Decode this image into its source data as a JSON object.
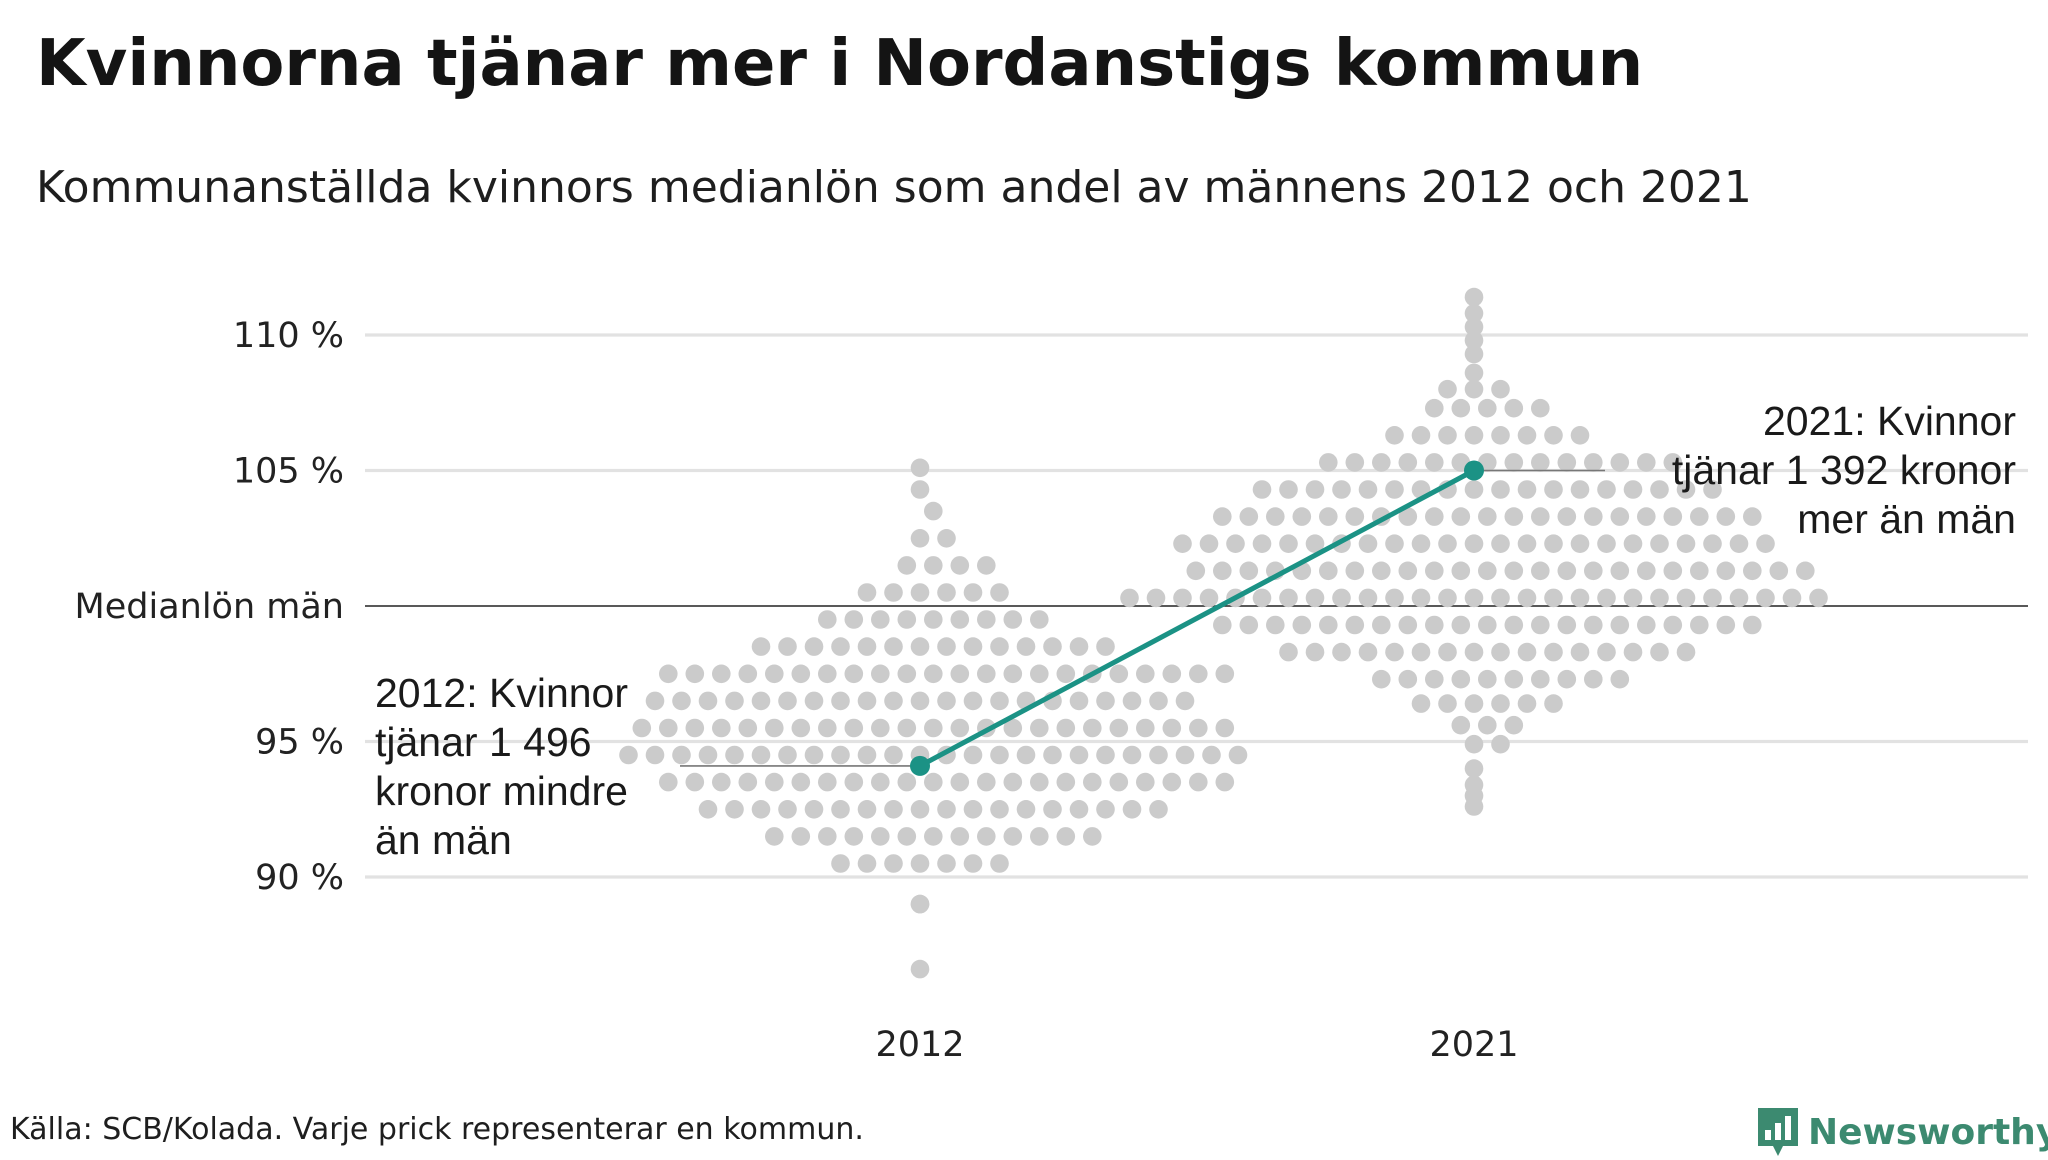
{
  "header": {
    "title": "Kvinnorna tjänar mer i Nordanstigs kommun",
    "subtitle": "Kommunanställda kvinnors medianlön som andel av männens 2012 och 2021"
  },
  "footer": {
    "source": "Källa: SCB/Kolada. Varje prick representerar en kommun.",
    "brand": "Newsworthy",
    "brand_icon": "bar-chart-pin-icon"
  },
  "colors": {
    "dots": "#cbcbcb",
    "highlight": "#1b9285",
    "gridline": "#e2e2e2",
    "reference_line": "#222222",
    "brand": "#3c8a70"
  },
  "chart_data": {
    "type": "scatter",
    "subtype": "beeswarm-slope",
    "categories": [
      "2012",
      "2021"
    ],
    "y_ticks": [
      {
        "value": 90,
        "label": "90 %"
      },
      {
        "value": 95,
        "label": "95 %"
      },
      {
        "value": 100,
        "label": "Medianlön män"
      },
      {
        "value": 105,
        "label": "105 %"
      },
      {
        "value": 110,
        "label": "110 %"
      }
    ],
    "ylim": [
      85,
      112
    ],
    "reference_line": {
      "value": 100,
      "label": "Medianlön män"
    },
    "grid": true,
    "highlight": {
      "values": [
        {
          "category": "2012",
          "value": 94.1
        },
        {
          "category": "2021",
          "value": 105.0
        }
      ],
      "annotations": [
        {
          "category": "2012",
          "lines": [
            "2012: Kvinnor",
            "tjänar 1 496",
            "kronor mindre",
            "än män"
          ]
        },
        {
          "category": "2021",
          "lines": [
            "2021: Kvinnor",
            "tjänar 1 392 kronor",
            "mer än män"
          ]
        }
      ]
    },
    "distribution": [
      {
        "category": "2012",
        "outliers": [
          86.6,
          89.0,
          89.0,
          105.1
        ],
        "bins": [
          {
            "value": 90.5,
            "count": 7
          },
          {
            "value": 91.5,
            "count": 13
          },
          {
            "value": 92.5,
            "count": 18
          },
          {
            "value": 93.5,
            "count": 22
          },
          {
            "value": 94.5,
            "count": 24
          },
          {
            "value": 95.5,
            "count": 23
          },
          {
            "value": 96.5,
            "count": 21
          },
          {
            "value": 97.5,
            "count": 22
          },
          {
            "value": 98.5,
            "count": 14
          },
          {
            "value": 99.5,
            "count": 9
          },
          {
            "value": 100.5,
            "count": 6
          },
          {
            "value": 101.5,
            "count": 4
          },
          {
            "value": 102.5,
            "count": 2
          },
          {
            "value": 103.5,
            "count": 1
          },
          {
            "value": 104.3,
            "count": 1
          }
        ]
      },
      {
        "category": "2021",
        "outliers": [
          92.6,
          93.0,
          93.4,
          94.0,
          108.6,
          109.3,
          109.8,
          110.3,
          110.8,
          111.4
        ],
        "bins": [
          {
            "value": 94.9,
            "count": 2
          },
          {
            "value": 95.6,
            "count": 3
          },
          {
            "value": 96.4,
            "count": 6
          },
          {
            "value": 97.3,
            "count": 10
          },
          {
            "value": 98.3,
            "count": 16
          },
          {
            "value": 99.3,
            "count": 21
          },
          {
            "value": 100.3,
            "count": 27
          },
          {
            "value": 101.3,
            "count": 24
          },
          {
            "value": 102.3,
            "count": 23
          },
          {
            "value": 103.3,
            "count": 21
          },
          {
            "value": 104.3,
            "count": 18
          },
          {
            "value": 105.3,
            "count": 14
          },
          {
            "value": 106.3,
            "count": 8
          },
          {
            "value": 107.3,
            "count": 5
          },
          {
            "value": 108.0,
            "count": 3
          }
        ]
      }
    ]
  }
}
